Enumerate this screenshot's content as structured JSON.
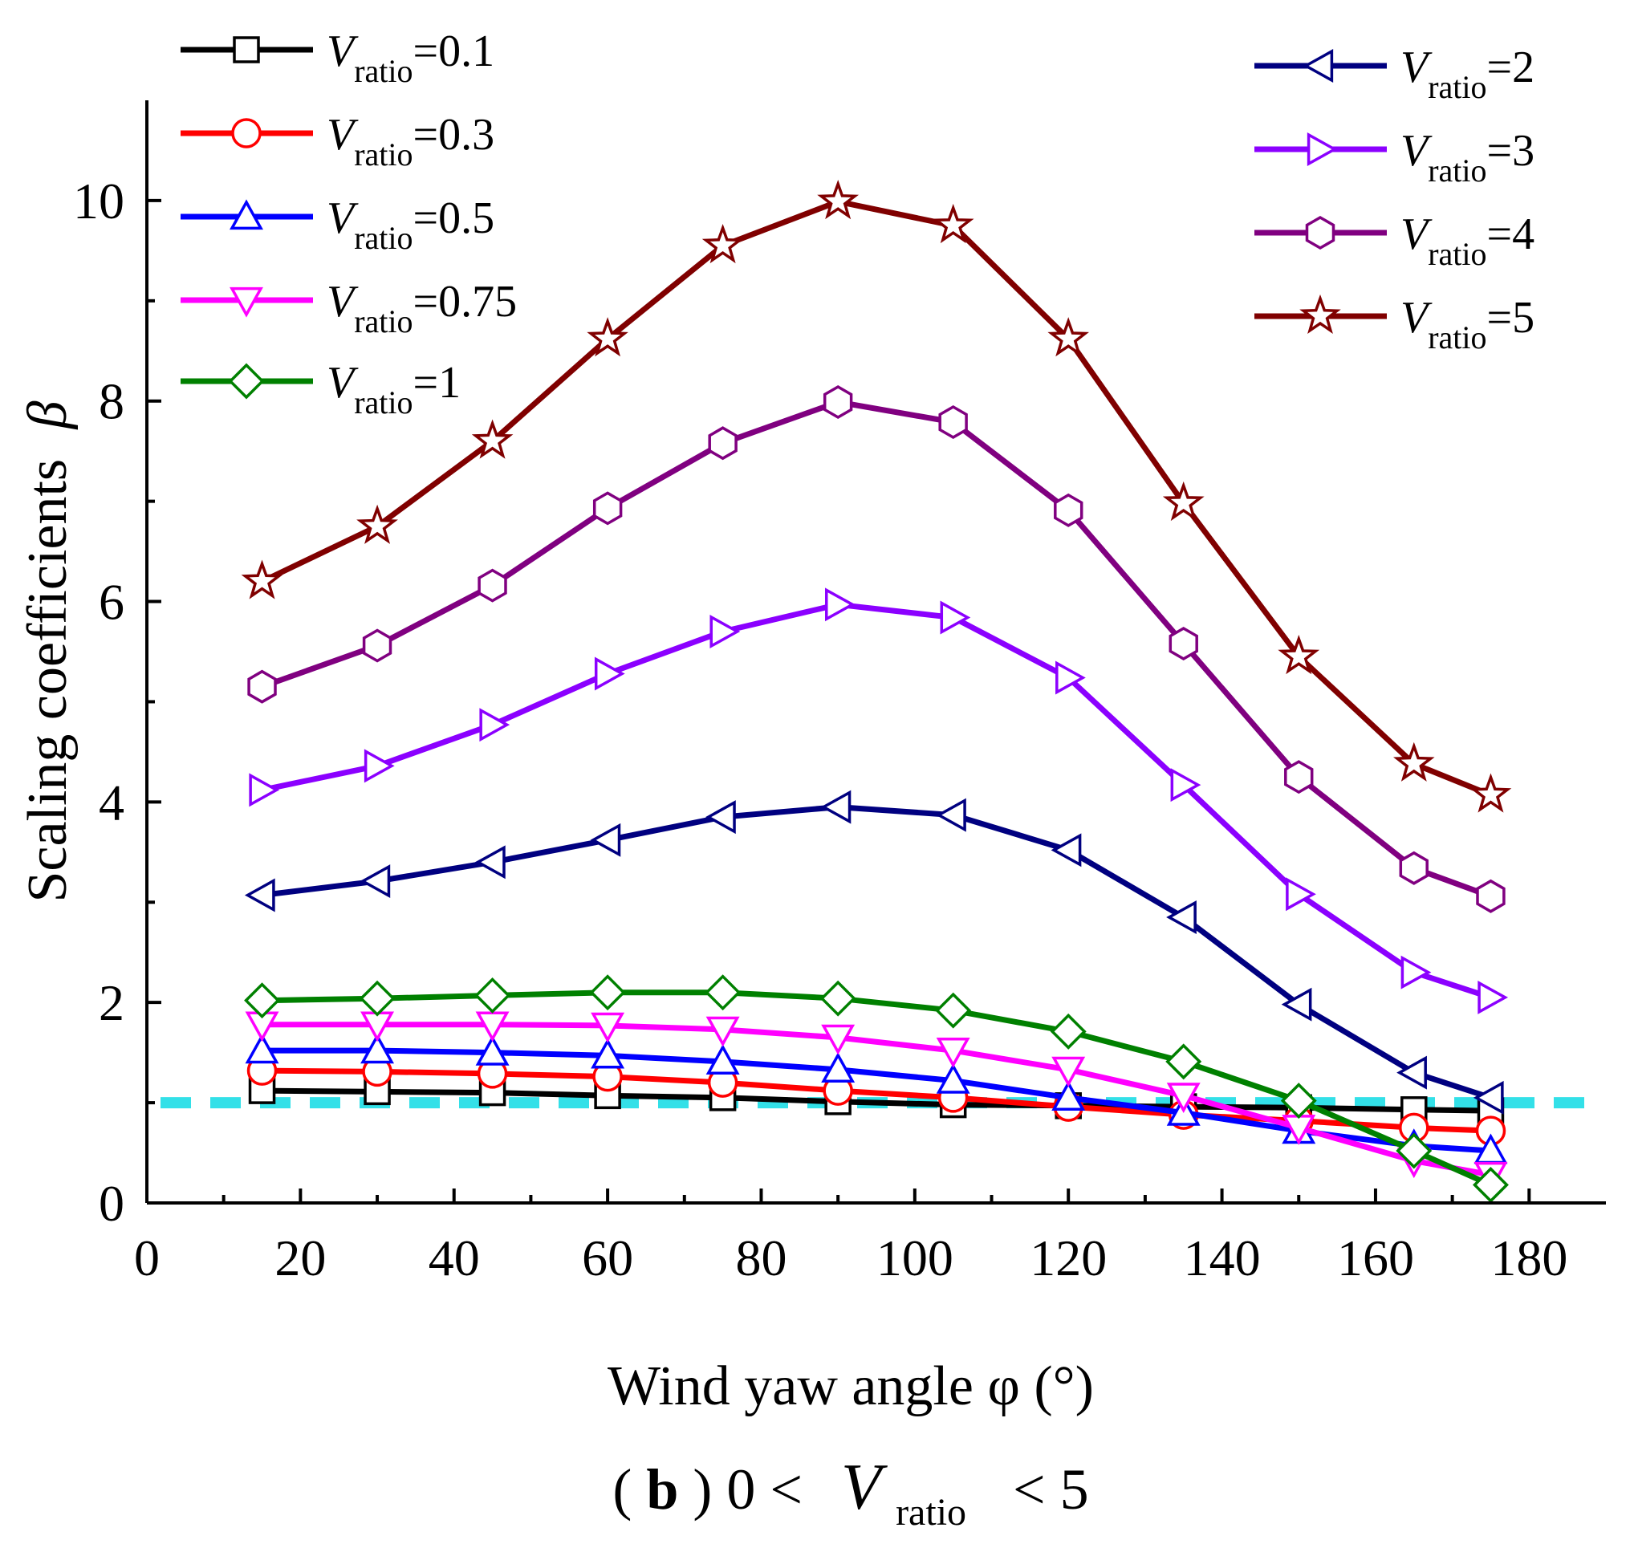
{
  "chart_data": {
    "type": "line",
    "xlabel": "Wind yaw angle φ (°)",
    "ylabel": "Scaling coefficients",
    "ylabel_symbol": "β",
    "xlim": [
      0,
      190
    ],
    "ylim": [
      0,
      11
    ],
    "x_ticks": [
      0,
      20,
      40,
      60,
      80,
      100,
      120,
      140,
      160,
      180
    ],
    "y_ticks": [
      0,
      2,
      4,
      6,
      8,
      10
    ],
    "x_tick_labels": [
      "0",
      "20",
      "40",
      "60",
      "80",
      "100",
      "120",
      "140",
      "160",
      "180"
    ],
    "y_tick_labels": [
      "0",
      "2",
      "4",
      "6",
      "8",
      "10"
    ],
    "reference_line": {
      "y": 1,
      "color": "#33e0e8",
      "style": "dashed"
    },
    "caption": {
      "prefix": "(",
      "bold": "b",
      "suffix": ") 0 <",
      "var": "V",
      "sub": "ratio",
      "tail": "< 5"
    },
    "x": [
      15,
      30,
      45,
      60,
      75,
      90,
      105,
      120,
      135,
      150,
      165,
      175
    ],
    "series": [
      {
        "name_var": "V",
        "name_sub": "ratio",
        "name_val": "=0.1",
        "color": "#000000",
        "marker": "square",
        "values": [
          1.12,
          1.11,
          1.1,
          1.07,
          1.05,
          1.01,
          0.98,
          0.97,
          0.96,
          0.95,
          0.93,
          0.92
        ]
      },
      {
        "name_var": "V",
        "name_sub": "ratio",
        "name_val": "=0.3",
        "color": "#ff0000",
        "marker": "circle",
        "values": [
          1.32,
          1.31,
          1.29,
          1.26,
          1.2,
          1.12,
          1.05,
          0.96,
          0.88,
          0.82,
          0.75,
          0.72
        ]
      },
      {
        "name_var": "V",
        "name_sub": "ratio",
        "name_val": "=0.5",
        "color": "#0000ff",
        "marker": "triangle-up",
        "values": [
          1.52,
          1.52,
          1.5,
          1.47,
          1.41,
          1.33,
          1.22,
          1.05,
          0.9,
          0.72,
          0.57,
          0.52
        ]
      },
      {
        "name_var": "V",
        "name_sub": "ratio",
        "name_val": "=0.75",
        "color": "#ff00ff",
        "marker": "triangle-down",
        "values": [
          1.78,
          1.78,
          1.78,
          1.77,
          1.73,
          1.65,
          1.52,
          1.33,
          1.07,
          0.75,
          0.42,
          0.28
        ]
      },
      {
        "name_var": "V",
        "name_sub": "ratio",
        "name_val": "=1",
        "color": "#008000",
        "marker": "diamond",
        "values": [
          2.02,
          2.04,
          2.07,
          2.1,
          2.1,
          2.04,
          1.92,
          1.71,
          1.41,
          1.02,
          0.52,
          0.18
        ]
      },
      {
        "name_var": "V",
        "name_sub": "ratio",
        "name_val": "=2",
        "color": "#000080",
        "marker": "triangle-left",
        "values": [
          3.07,
          3.21,
          3.4,
          3.62,
          3.85,
          3.95,
          3.87,
          3.52,
          2.85,
          1.98,
          1.3,
          1.05
        ]
      },
      {
        "name_var": "V",
        "name_sub": "ratio",
        "name_val": "=3",
        "color": "#8b00ff",
        "marker": "triangle-right",
        "values": [
          4.12,
          4.36,
          4.77,
          5.28,
          5.7,
          5.97,
          5.84,
          5.24,
          4.17,
          3.08,
          2.3,
          2.05
        ]
      },
      {
        "name_var": "V",
        "name_sub": "ratio",
        "name_val": "=4",
        "color": "#800080",
        "marker": "hexagon",
        "values": [
          5.15,
          5.56,
          6.16,
          6.93,
          7.58,
          7.99,
          7.79,
          6.91,
          5.58,
          4.25,
          3.34,
          3.06
        ]
      },
      {
        "name_var": "V",
        "name_sub": "ratio",
        "name_val": "=5",
        "color": "#800000",
        "marker": "star",
        "values": [
          6.2,
          6.75,
          7.6,
          8.62,
          9.55,
          9.99,
          9.75,
          8.62,
          6.98,
          5.45,
          4.38,
          4.07
        ]
      }
    ]
  }
}
